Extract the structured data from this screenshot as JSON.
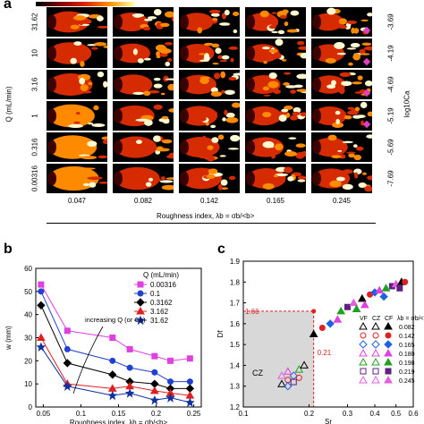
{
  "panel_a": {
    "letter": "a",
    "q_values": [
      "31.62",
      "10",
      "3.16",
      "1",
      "0.316",
      "0.00316"
    ],
    "ca_values": [
      "-3.69",
      "-4.19",
      "-4.69",
      "-5.19",
      "-5.69",
      "-7.69"
    ],
    "roughness_values": [
      "0.047",
      "0.082",
      "0.142",
      "0.165",
      "0.245"
    ],
    "ylabel": "Q (mL/min)",
    "ylabel_right": "log10Ca",
    "xlabel": "Roughness index, λb = σb/<b>",
    "fingering_level": [
      [
        0.5,
        0.85,
        0.9,
        0.95,
        1.0
      ],
      [
        0.4,
        0.75,
        0.85,
        0.9,
        0.95
      ],
      [
        0.35,
        0.65,
        0.75,
        0.85,
        0.9
      ],
      [
        0.25,
        0.55,
        0.7,
        0.8,
        0.85
      ],
      [
        0.15,
        0.45,
        0.6,
        0.7,
        0.8
      ],
      [
        0.05,
        0.3,
        0.5,
        0.6,
        0.7
      ]
    ],
    "colors": {
      "dark": "#3b0000",
      "mid": "#d62a00",
      "hot": "#ff8a00",
      "white": "#fff8d0",
      "marker": "#e040c0"
    }
  },
  "panel_b": {
    "letter": "b",
    "legend_title": "Q (mL/min)",
    "annotation": "increasing Q (or Ca)",
    "ylabel": "w (mm)",
    "xlabel": "Roughness index, λb = σb/<b>"
  },
  "panel_c": {
    "letter": "c",
    "ylabel": "Df",
    "xlabel": "Sr",
    "cz_label": "CZ",
    "hline_label": "1.66",
    "vline_label": "0.21",
    "legend_headers": [
      "VF",
      "CZ",
      "CF",
      "λb = σb/<b>"
    ],
    "legend_values": [
      "0.082",
      "0.142",
      "0.165",
      "0.180",
      "0.198",
      "0.219",
      "0.245"
    ],
    "legend_colors": [
      "#000000",
      "#e02020",
      "#2060e0",
      "#e040e0",
      "#20a020",
      "#602080",
      "#e060e0"
    ]
  },
  "chart_data": [
    {
      "type": "line",
      "xlabel": "Roughness index, λb = σb/<b>",
      "ylabel": "w (mm)",
      "xlim": [
        0.04,
        0.26
      ],
      "ylim": [
        0,
        60
      ],
      "xticks": [
        0.05,
        0.1,
        0.15,
        0.2,
        0.25
      ],
      "yticks": [
        0,
        10,
        20,
        30,
        40,
        50,
        60
      ],
      "series": [
        {
          "name": "0.00316",
          "color": "#e040e0",
          "marker": "square",
          "x": [
            0.047,
            0.082,
            0.142,
            0.165,
            0.198,
            0.219,
            0.245
          ],
          "y": [
            53,
            33,
            30,
            25,
            22,
            20,
            21
          ]
        },
        {
          "name": "0.1",
          "color": "#2040d0",
          "marker": "circle",
          "x": [
            0.047,
            0.082,
            0.142,
            0.165,
            0.198,
            0.219,
            0.245
          ],
          "y": [
            50,
            25,
            20,
            17,
            15,
            11,
            11
          ]
        },
        {
          "name": "0.3162",
          "color": "#000000",
          "marker": "diamond",
          "x": [
            0.047,
            0.082,
            0.142,
            0.165,
            0.198,
            0.219,
            0.245
          ],
          "y": [
            44,
            19,
            14,
            11,
            10,
            8,
            8
          ]
        },
        {
          "name": "3.162",
          "color": "#e02020",
          "marker": "triangle",
          "x": [
            0.047,
            0.082,
            0.142,
            0.165,
            0.198,
            0.219,
            0.245
          ],
          "y": [
            30,
            10,
            8,
            9,
            7,
            6,
            5
          ]
        },
        {
          "name": "31.62",
          "color": "#1030a0",
          "marker": "star",
          "x": [
            0.047,
            0.082,
            0.142,
            0.165,
            0.198,
            0.219,
            0.245
          ],
          "y": [
            26,
            9,
            5,
            6,
            3,
            4,
            2
          ]
        }
      ]
    },
    {
      "type": "scatter",
      "xlabel": "Sr",
      "ylabel": "Df",
      "xlim": [
        0.1,
        0.6
      ],
      "ylim": [
        1.2,
        1.9
      ],
      "xticks": [
        0.1,
        0.2,
        0.3,
        0.4,
        0.5,
        0.6
      ],
      "yticks": [
        1.2,
        1.3,
        1.4,
        1.5,
        1.6,
        1.7,
        1.8,
        1.9
      ],
      "log_x": true,
      "reference_point": {
        "x": 0.21,
        "y": 1.66
      },
      "cz_points": [
        [
          0.15,
          1.31
        ],
        [
          0.16,
          1.33
        ],
        [
          0.17,
          1.35
        ],
        [
          0.16,
          1.37
        ],
        [
          0.18,
          1.38
        ],
        [
          0.17,
          1.32
        ],
        [
          0.15,
          1.35
        ],
        [
          0.19,
          1.4
        ],
        [
          0.18,
          1.34
        ],
        [
          0.16,
          1.3
        ]
      ],
      "cf_points": [
        [
          0.21,
          1.55
        ],
        [
          0.23,
          1.58
        ],
        [
          0.25,
          1.6
        ],
        [
          0.27,
          1.62
        ],
        [
          0.28,
          1.66
        ],
        [
          0.3,
          1.68
        ],
        [
          0.32,
          1.7
        ],
        [
          0.35,
          1.72
        ],
        [
          0.38,
          1.74
        ],
        [
          0.4,
          1.75
        ],
        [
          0.42,
          1.76
        ],
        [
          0.45,
          1.77
        ],
        [
          0.48,
          1.78
        ],
        [
          0.5,
          1.79
        ],
        [
          0.53,
          1.8
        ],
        [
          0.55,
          1.8
        ],
        [
          0.44,
          1.73
        ],
        [
          0.36,
          1.69
        ],
        [
          0.33,
          1.67
        ],
        [
          0.52,
          1.77
        ]
      ]
    }
  ]
}
